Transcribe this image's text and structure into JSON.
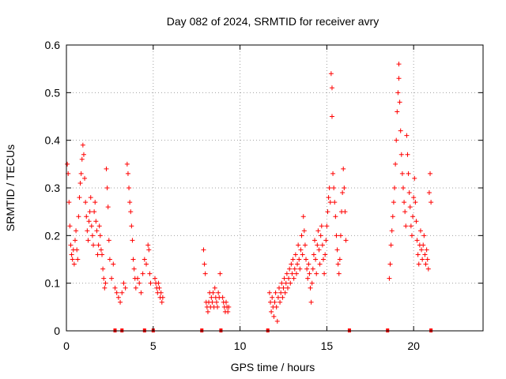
{
  "chart_data": {
    "type": "scatter",
    "title": "Day 082 of 2024, SRMTID for receiver avry",
    "xlabel": "GPS time / hours",
    "ylabel": "SRMTID / TECUs",
    "xlim": [
      0,
      24
    ],
    "ylim": [
      0,
      0.6
    ],
    "xticks": [
      0,
      5,
      10,
      15,
      20
    ],
    "xtick_labels": [
      "0",
      "5",
      "10",
      "15",
      "20"
    ],
    "yticks": [
      0,
      0.1,
      0.2,
      0.3,
      0.4,
      0.5,
      0.6
    ],
    "ytick_labels": [
      "0",
      "0.1",
      "0.2",
      "0.3",
      "0.4",
      "0.5",
      "0.6"
    ],
    "grid": true,
    "marker": "+",
    "color": "#ff0000",
    "gap_markers_x": [
      2.8,
      3.2,
      4.5,
      5.0,
      7.8,
      8.9,
      11.6,
      16.3,
      18.5,
      21.0
    ],
    "series": [
      {
        "name": "SRMTID",
        "points": [
          [
            0.05,
            0.35
          ],
          [
            0.1,
            0.33
          ],
          [
            0.15,
            0.27
          ],
          [
            0.2,
            0.22
          ],
          [
            0.25,
            0.18
          ],
          [
            0.3,
            0.16
          ],
          [
            0.35,
            0.15
          ],
          [
            0.4,
            0.17
          ],
          [
            0.45,
            0.14
          ],
          [
            0.5,
            0.19
          ],
          [
            0.55,
            0.21
          ],
          [
            0.6,
            0.17
          ],
          [
            0.65,
            0.15
          ],
          [
            0.7,
            0.24
          ],
          [
            0.75,
            0.28
          ],
          [
            0.8,
            0.31
          ],
          [
            0.85,
            0.33
          ],
          [
            0.9,
            0.36
          ],
          [
            0.95,
            0.39
          ],
          [
            1.0,
            0.37
          ],
          [
            1.05,
            0.32
          ],
          [
            1.1,
            0.27
          ],
          [
            1.15,
            0.24
          ],
          [
            1.2,
            0.21
          ],
          [
            1.25,
            0.19
          ],
          [
            1.3,
            0.23
          ],
          [
            1.35,
            0.25
          ],
          [
            1.4,
            0.28
          ],
          [
            1.45,
            0.22
          ],
          [
            1.5,
            0.2
          ],
          [
            1.55,
            0.18
          ],
          [
            1.6,
            0.25
          ],
          [
            1.65,
            0.27
          ],
          [
            1.7,
            0.23
          ],
          [
            1.75,
            0.21
          ],
          [
            1.8,
            0.16
          ],
          [
            1.85,
            0.18
          ],
          [
            1.9,
            0.22
          ],
          [
            1.95,
            0.2
          ],
          [
            2.0,
            0.17
          ],
          [
            2.05,
            0.16
          ],
          [
            2.1,
            0.13
          ],
          [
            2.15,
            0.11
          ],
          [
            2.2,
            0.09
          ],
          [
            2.25,
            0.1
          ],
          [
            2.3,
            0.34
          ],
          [
            2.35,
            0.3
          ],
          [
            2.4,
            0.26
          ],
          [
            2.45,
            0.19
          ],
          [
            2.5,
            0.15
          ],
          [
            2.6,
            0.11
          ],
          [
            2.7,
            0.14
          ],
          [
            2.8,
            0.09
          ],
          [
            2.9,
            0.08
          ],
          [
            3.0,
            0.07
          ],
          [
            3.1,
            0.06
          ],
          [
            3.2,
            0.08
          ],
          [
            3.3,
            0.1
          ],
          [
            3.4,
            0.09
          ],
          [
            3.5,
            0.35
          ],
          [
            3.55,
            0.33
          ],
          [
            3.6,
            0.3
          ],
          [
            3.65,
            0.27
          ],
          [
            3.7,
            0.25
          ],
          [
            3.75,
            0.22
          ],
          [
            3.8,
            0.19
          ],
          [
            3.85,
            0.15
          ],
          [
            3.9,
            0.13
          ],
          [
            3.95,
            0.11
          ],
          [
            4.0,
            0.09
          ],
          [
            4.1,
            0.11
          ],
          [
            4.2,
            0.1
          ],
          [
            4.3,
            0.08
          ],
          [
            4.4,
            0.12
          ],
          [
            4.5,
            0.15
          ],
          [
            4.6,
            0.14
          ],
          [
            4.7,
            0.18
          ],
          [
            4.75,
            0.17
          ],
          [
            4.8,
            0.12
          ],
          [
            4.85,
            0.1
          ],
          [
            5.1,
            0.11
          ],
          [
            5.15,
            0.1
          ],
          [
            5.2,
            0.09
          ],
          [
            5.25,
            0.08
          ],
          [
            5.3,
            0.1
          ],
          [
            5.35,
            0.09
          ],
          [
            5.4,
            0.07
          ],
          [
            5.45,
            0.08
          ],
          [
            5.5,
            0.06
          ],
          [
            5.55,
            0.07
          ],
          [
            7.9,
            0.17
          ],
          [
            7.95,
            0.14
          ],
          [
            8.0,
            0.12
          ],
          [
            8.05,
            0.06
          ],
          [
            8.1,
            0.05
          ],
          [
            8.15,
            0.04
          ],
          [
            8.2,
            0.06
          ],
          [
            8.25,
            0.08
          ],
          [
            8.3,
            0.05
          ],
          [
            8.35,
            0.07
          ],
          [
            8.4,
            0.06
          ],
          [
            8.45,
            0.08
          ],
          [
            8.5,
            0.05
          ],
          [
            8.55,
            0.09
          ],
          [
            8.6,
            0.07
          ],
          [
            8.65,
            0.06
          ],
          [
            8.7,
            0.05
          ],
          [
            8.75,
            0.08
          ],
          [
            8.8,
            0.07
          ],
          [
            8.85,
            0.12
          ],
          [
            9.0,
            0.07
          ],
          [
            9.05,
            0.06
          ],
          [
            9.1,
            0.05
          ],
          [
            9.15,
            0.04
          ],
          [
            9.2,
            0.06
          ],
          [
            9.25,
            0.05
          ],
          [
            9.3,
            0.04
          ],
          [
            9.35,
            0.05
          ],
          [
            11.7,
            0.08
          ],
          [
            11.75,
            0.06
          ],
          [
            11.8,
            0.04
          ],
          [
            11.85,
            0.07
          ],
          [
            11.9,
            0.05
          ],
          [
            11.95,
            0.03
          ],
          [
            12.0,
            0.06
          ],
          [
            12.05,
            0.08
          ],
          [
            12.1,
            0.05
          ],
          [
            12.15,
            0.02
          ],
          [
            12.2,
            0.07
          ],
          [
            12.25,
            0.09
          ],
          [
            12.3,
            0.06
          ],
          [
            12.35,
            0.08
          ],
          [
            12.4,
            0.1
          ],
          [
            12.45,
            0.07
          ],
          [
            12.5,
            0.09
          ],
          [
            12.55,
            0.11
          ],
          [
            12.6,
            0.08
          ],
          [
            12.65,
            0.1
          ],
          [
            12.7,
            0.12
          ],
          [
            12.75,
            0.09
          ],
          [
            12.8,
            0.11
          ],
          [
            12.85,
            0.13
          ],
          [
            12.9,
            0.1
          ],
          [
            12.95,
            0.14
          ],
          [
            13.0,
            0.12
          ],
          [
            13.05,
            0.15
          ],
          [
            13.1,
            0.11
          ],
          [
            13.15,
            0.13
          ],
          [
            13.2,
            0.16
          ],
          [
            13.25,
            0.12
          ],
          [
            13.3,
            0.14
          ],
          [
            13.35,
            0.18
          ],
          [
            13.4,
            0.15
          ],
          [
            13.45,
            0.13
          ],
          [
            13.5,
            0.17
          ],
          [
            13.55,
            0.2
          ],
          [
            13.6,
            0.16
          ],
          [
            13.65,
            0.24
          ],
          [
            13.7,
            0.21
          ],
          [
            13.75,
            0.18
          ],
          [
            13.8,
            0.15
          ],
          [
            13.85,
            0.13
          ],
          [
            13.9,
            0.11
          ],
          [
            13.95,
            0.14
          ],
          [
            14.0,
            0.12
          ],
          [
            14.05,
            0.09
          ],
          [
            14.1,
            0.06
          ],
          [
            14.15,
            0.1
          ],
          [
            14.2,
            0.13
          ],
          [
            14.25,
            0.16
          ],
          [
            14.3,
            0.19
          ],
          [
            14.35,
            0.15
          ],
          [
            14.4,
            0.12
          ],
          [
            14.45,
            0.18
          ],
          [
            14.5,
            0.21
          ],
          [
            14.55,
            0.17
          ],
          [
            14.6,
            0.14
          ],
          [
            14.65,
            0.2
          ],
          [
            14.7,
            0.22
          ],
          [
            14.75,
            0.18
          ],
          [
            14.8,
            0.15
          ],
          [
            14.85,
            0.12
          ],
          [
            14.9,
            0.16
          ],
          [
            14.95,
            0.19
          ],
          [
            15.0,
            0.22
          ],
          [
            15.05,
            0.25
          ],
          [
            15.1,
            0.28
          ],
          [
            15.15,
            0.3
          ],
          [
            15.2,
            0.27
          ],
          [
            15.25,
            0.54
          ],
          [
            15.3,
            0.51
          ],
          [
            15.3,
            0.45
          ],
          [
            15.35,
            0.33
          ],
          [
            15.4,
            0.3
          ],
          [
            15.45,
            0.27
          ],
          [
            15.5,
            0.24
          ],
          [
            15.55,
            0.2
          ],
          [
            15.6,
            0.17
          ],
          [
            15.65,
            0.14
          ],
          [
            15.7,
            0.12
          ],
          [
            15.75,
            0.15
          ],
          [
            15.8,
            0.2
          ],
          [
            15.85,
            0.25
          ],
          [
            15.9,
            0.29
          ],
          [
            15.95,
            0.34
          ],
          [
            16.0,
            0.3
          ],
          [
            16.05,
            0.25
          ],
          [
            16.1,
            0.19
          ],
          [
            18.6,
            0.11
          ],
          [
            18.65,
            0.14
          ],
          [
            18.7,
            0.18
          ],
          [
            18.75,
            0.21
          ],
          [
            18.8,
            0.24
          ],
          [
            18.85,
            0.27
          ],
          [
            18.9,
            0.3
          ],
          [
            18.95,
            0.35
          ],
          [
            19.0,
            0.4
          ],
          [
            19.05,
            0.46
          ],
          [
            19.1,
            0.5
          ],
          [
            19.15,
            0.53
          ],
          [
            19.15,
            0.56
          ],
          [
            19.2,
            0.48
          ],
          [
            19.25,
            0.42
          ],
          [
            19.3,
            0.37
          ],
          [
            19.35,
            0.33
          ],
          [
            19.4,
            0.3
          ],
          [
            19.45,
            0.27
          ],
          [
            19.5,
            0.25
          ],
          [
            19.55,
            0.22
          ],
          [
            19.6,
            0.41
          ],
          [
            19.65,
            0.37
          ],
          [
            19.7,
            0.33
          ],
          [
            19.75,
            0.29
          ],
          [
            19.8,
            0.26
          ],
          [
            19.85,
            0.22
          ],
          [
            19.9,
            0.2
          ],
          [
            19.95,
            0.24
          ],
          [
            20.0,
            0.28
          ],
          [
            20.05,
            0.32
          ],
          [
            20.1,
            0.27
          ],
          [
            20.15,
            0.23
          ],
          [
            20.2,
            0.19
          ],
          [
            20.25,
            0.16
          ],
          [
            20.3,
            0.14
          ],
          [
            20.35,
            0.18
          ],
          [
            20.4,
            0.21
          ],
          [
            20.45,
            0.17
          ],
          [
            20.5,
            0.15
          ],
          [
            20.55,
            0.18
          ],
          [
            20.6,
            0.2
          ],
          [
            20.65,
            0.16
          ],
          [
            20.7,
            0.14
          ],
          [
            20.75,
            0.17
          ],
          [
            20.8,
            0.15
          ],
          [
            20.85,
            0.13
          ],
          [
            20.9,
            0.29
          ],
          [
            20.95,
            0.33
          ],
          [
            21.0,
            0.27
          ]
        ]
      }
    ]
  }
}
